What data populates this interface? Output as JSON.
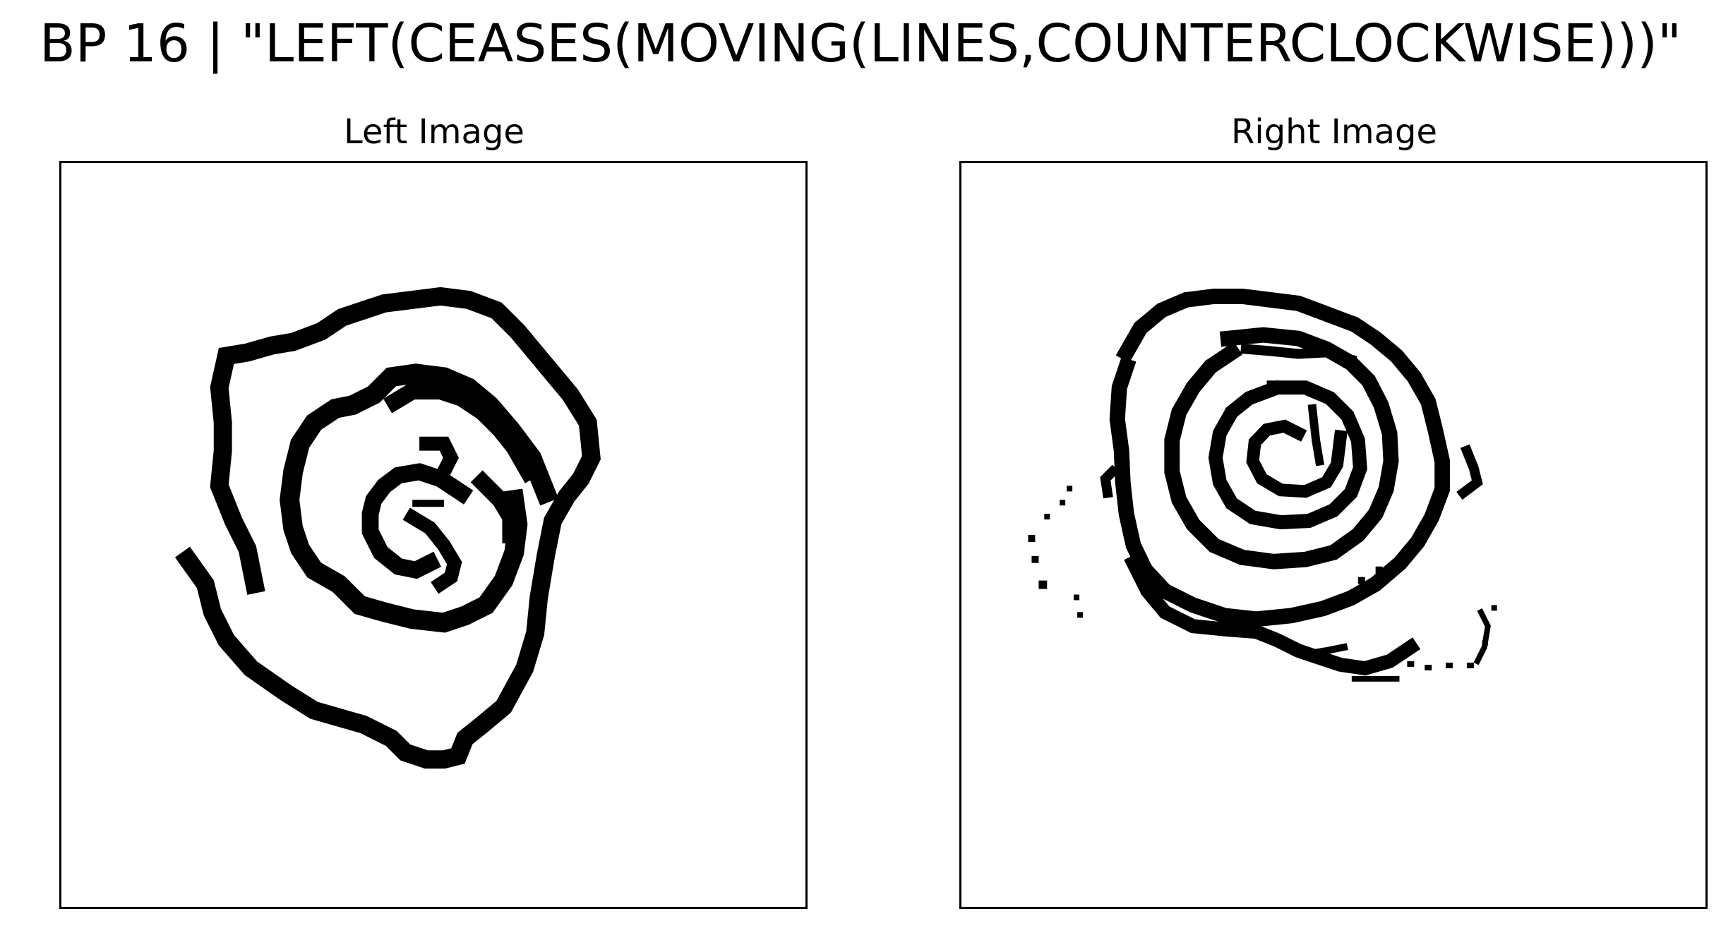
{
  "figure": {
    "title": "BP 16 | \"LEFT(CEASES(MOVING(LINES,COUNTERCLOCKWISE)))\""
  },
  "panels": [
    {
      "title": "Left Image",
      "content": "spiral-drawing"
    },
    {
      "title": "Right Image",
      "content": "spiral-drawing"
    }
  ],
  "colors": {
    "ink": "#000000",
    "background": "#ffffff"
  }
}
